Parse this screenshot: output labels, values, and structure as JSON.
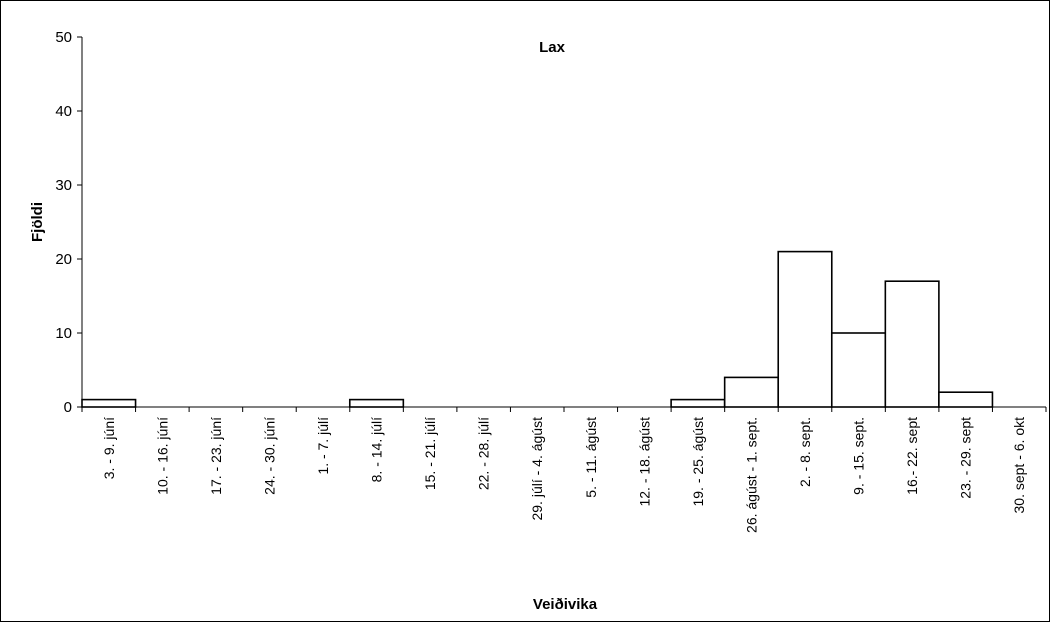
{
  "chart_data": {
    "type": "bar",
    "title": "Lax",
    "xlabel": "Veiðivika",
    "ylabel": "Fjöldi",
    "ylim": [
      0,
      50
    ],
    "yticks": [
      0,
      10,
      20,
      30,
      40,
      50
    ],
    "grid": false,
    "categories": [
      "3. - 9. júní",
      "10. - 16. júní",
      "17. - 23. júní",
      "24. - 30. júní",
      "1. - 7. júlí",
      "8. - 14. júlí",
      "15. - 21. júlí",
      "22. - 28. júlí",
      "29. júlí - 4. ágúst",
      "5. - 11. ágúst",
      "12. - 18. ágúst",
      "19. - 25. ágúst",
      "26. ágúst - 1. sept.",
      "2. - 8. sept.",
      "9. - 15. sept.",
      "16.- 22. sept",
      "23. - 29. sept",
      "30. sept - 6. okt"
    ],
    "values": [
      1,
      0,
      0,
      0,
      0,
      1,
      0,
      0,
      0,
      0,
      0,
      1,
      4,
      21,
      10,
      17,
      2,
      0
    ],
    "bar_fill": "#ffffff",
    "bar_stroke": "#000000"
  }
}
